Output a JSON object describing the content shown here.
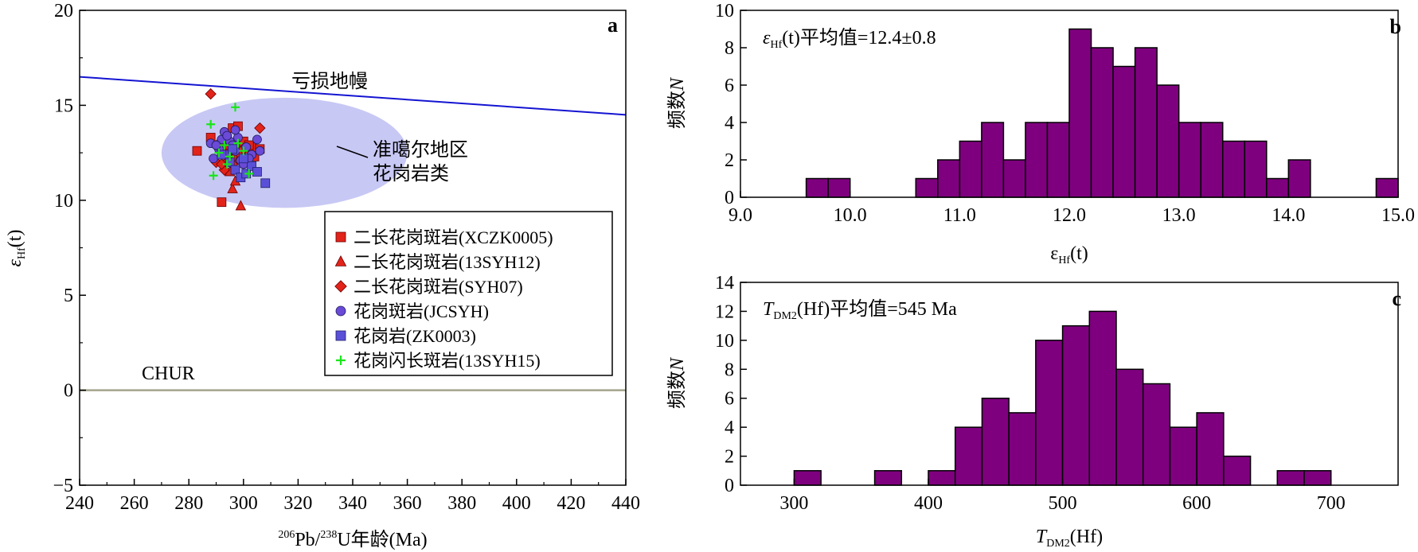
{
  "colors": {
    "purple_fill": "#7f007f",
    "red": "#e2231a",
    "blue_line": "#1414d2",
    "chur_line": "#a5a58d",
    "ellipse": "#c8c8f5",
    "circle_fill": "#6a4ad6",
    "square_fill": "#5a50d8",
    "plus": "#19e619"
  },
  "chart_data": [
    {
      "type": "scatter",
      "panel_label": "a",
      "xlabel_sup1": "206",
      "xlabel_part1": "Pb/",
      "xlabel_sup2": "238",
      "xlabel_part2": "U年龄(Ma)",
      "ylabel_main": "ε",
      "ylabel_sub": "Hf",
      "ylabel_paren": "(t)",
      "xlim": [
        240,
        440
      ],
      "ylim": [
        -5,
        20
      ],
      "xticks": [
        "240",
        "260",
        "280",
        "300",
        "320",
        "340",
        "360",
        "380",
        "400",
        "420",
        "440"
      ],
      "yticks": [
        "−5",
        "0",
        "5",
        "10",
        "15",
        "20"
      ],
      "lines": [
        {
          "name": "亏损地幔",
          "x": [
            240,
            440
          ],
          "y": [
            16.5,
            14.5
          ],
          "color": "#1414d2"
        },
        {
          "name": "CHUR",
          "x": [
            240,
            440
          ],
          "y": [
            0,
            0
          ],
          "color": "#a5a58d"
        }
      ],
      "region": {
        "name_line1": "准噶尔地区",
        "name_line2": "花岗岩类",
        "cx": 315,
        "cy": 12.5,
        "rx": 45,
        "ry": 2.9
      },
      "legend": [
        {
          "marker": "square",
          "label": "二长花岗斑岩(XCZK0005)"
        },
        {
          "marker": "triangle",
          "label": "二长花岗斑岩(13SYH12)"
        },
        {
          "marker": "diamond",
          "label": "二长花岗斑岩(SYH07)"
        },
        {
          "marker": "circle",
          "label": "花岗斑岩(JCSYH)"
        },
        {
          "marker": "bluesquare",
          "label": "花岗岩(ZK0003)"
        },
        {
          "marker": "plus",
          "label": "花岗闪长斑岩(13SYH15)"
        }
      ],
      "series": [
        {
          "marker": "square",
          "points": [
            [
              283,
              12.6
            ],
            [
              288,
              13.3
            ],
            [
              293,
              12.8
            ],
            [
              296,
              13.8
            ],
            [
              298,
              13.9
            ],
            [
              300,
              13.1
            ],
            [
              303,
              12.8
            ],
            [
              297,
              12.3
            ],
            [
              301,
              12.0
            ],
            [
              306,
              12.7
            ],
            [
              292,
              9.9
            ],
            [
              295,
              12.5
            ],
            [
              299,
              12.6
            ],
            [
              304,
              12.3
            ],
            [
              302,
              12.9
            ]
          ]
        },
        {
          "marker": "triangle",
          "points": [
            [
              293,
              12.9
            ],
            [
              295,
              11.5
            ],
            [
              296,
              10.6
            ],
            [
              298,
              12.1
            ],
            [
              299,
              9.7
            ],
            [
              297,
              11.0
            ],
            [
              294,
              12.2
            ],
            [
              300,
              12.7
            ],
            [
              296,
              12.6
            ]
          ]
        },
        {
          "marker": "diamond",
          "points": [
            [
              288,
              15.6
            ],
            [
              291,
              13.0
            ],
            [
              293,
              11.6
            ],
            [
              290,
              12.0
            ],
            [
              296,
              11.9
            ],
            [
              299,
              12.4
            ],
            [
              300,
              12.7
            ],
            [
              306,
              13.8
            ],
            [
              294,
              12.3
            ],
            [
              292,
              11.9
            ]
          ]
        },
        {
          "marker": "circle",
          "points": [
            [
              288,
              13.0
            ],
            [
              289,
              12.2
            ],
            [
              291,
              12.7
            ],
            [
              292,
              13.2
            ],
            [
              293,
              13.6
            ],
            [
              294,
              12.4
            ],
            [
              295,
              13.1
            ],
            [
              296,
              12.9
            ],
            [
              297,
              12.6
            ],
            [
              298,
              13.3
            ],
            [
              299,
              12.1
            ],
            [
              300,
              11.9
            ],
            [
              301,
              12.8
            ],
            [
              303,
              12.4
            ],
            [
              305,
              13.2
            ],
            [
              306,
              12.6
            ],
            [
              290,
              12.9
            ],
            [
              294,
              13.4
            ],
            [
              297,
              13.7
            ],
            [
              302,
              12.2
            ]
          ]
        },
        {
          "marker": "bluesquare",
          "points": [
            [
              292,
              12.4
            ],
            [
              295,
              12.0
            ],
            [
              297,
              11.6
            ],
            [
              299,
              11.2
            ],
            [
              301,
              11.4
            ],
            [
              303,
              11.8
            ],
            [
              305,
              11.5
            ],
            [
              308,
              10.9
            ],
            [
              296,
              12.7
            ],
            [
              300,
              12.2
            ]
          ]
        },
        {
          "marker": "plus",
          "points": [
            [
              288,
              14.0
            ],
            [
              289,
              11.3
            ],
            [
              291,
              12.5
            ],
            [
              293,
              12.9
            ],
            [
              295,
              12.3
            ],
            [
              297,
              14.9
            ],
            [
              298,
              13.0
            ],
            [
              300,
              12.6
            ],
            [
              302,
              11.4
            ],
            [
              294,
              11.9
            ]
          ]
        }
      ]
    },
    {
      "type": "bar",
      "panel_label": "b",
      "annotation_main": "ε",
      "annotation_sub": "Hf",
      "annotation_rest": "(t)平均值=12.4±0.8",
      "xlabel_main": "ε",
      "xlabel_sub": "Hf",
      "xlabel_rest": "(t)",
      "ylabel_main": "频数",
      "ylabel_italic": "N",
      "xlim": [
        9.0,
        15.0
      ],
      "ylim": [
        0,
        10
      ],
      "xticks": [
        "9.0",
        "10.0",
        "11.0",
        "12.0",
        "13.0",
        "14.0",
        "15.0"
      ],
      "yticks": [
        "0",
        "2",
        "4",
        "6",
        "8",
        "10"
      ],
      "bin_width": 0.2,
      "bins_left": [
        9.6,
        9.8,
        10.6,
        10.8,
        11.0,
        11.2,
        11.4,
        11.6,
        11.8,
        12.0,
        12.2,
        12.4,
        12.6,
        12.8,
        13.0,
        13.2,
        13.4,
        13.6,
        13.8,
        14.0,
        14.8
      ],
      "values": [
        1,
        1,
        1,
        2,
        3,
        4,
        2,
        4,
        4,
        9,
        8,
        7,
        8,
        6,
        4,
        4,
        3,
        3,
        1,
        2,
        1
      ]
    },
    {
      "type": "bar",
      "panel_label": "c",
      "annotation_main": "T",
      "annotation_sub": "DM2",
      "annotation_rest": "(Hf)平均值=545 Ma",
      "xlabel_main": "T",
      "xlabel_sub": "DM2",
      "xlabel_rest": "(Hf)",
      "ylabel_main": "频数",
      "ylabel_italic": "N",
      "xlim": [
        260,
        750
      ],
      "ylim": [
        0,
        14
      ],
      "xticks": [
        "300",
        "400",
        "500",
        "600",
        "700"
      ],
      "xtick_values": [
        300,
        400,
        500,
        600,
        700
      ],
      "yticks": [
        "0",
        "2",
        "4",
        "6",
        "8",
        "10",
        "12",
        "14"
      ],
      "bin_width": 20,
      "bins_left": [
        300,
        360,
        400,
        420,
        440,
        460,
        480,
        500,
        520,
        540,
        560,
        580,
        600,
        620,
        660,
        680
      ],
      "values": [
        1,
        1,
        1,
        4,
        6,
        5,
        10,
        11,
        12,
        8,
        7,
        4,
        5,
        2,
        1,
        1
      ]
    }
  ]
}
